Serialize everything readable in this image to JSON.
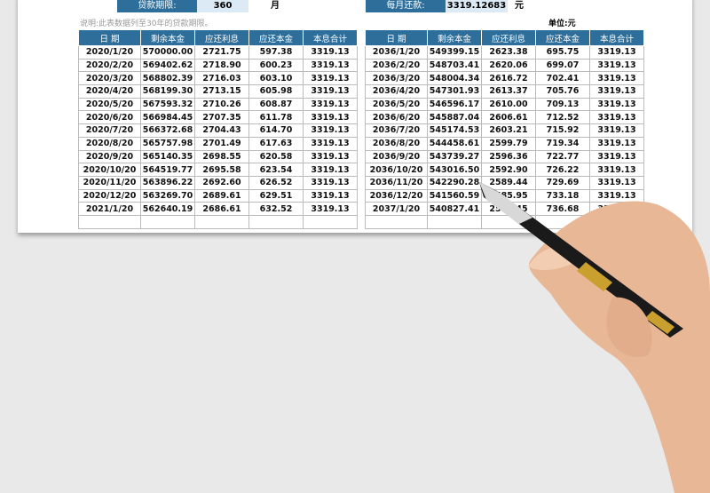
{
  "summary": {
    "term_label": "贷款期限:",
    "term_value": "360",
    "term_unit": "月",
    "payment_label": "每月还款:",
    "payment_value": "3319.12683",
    "payment_unit": "元"
  },
  "note": "说明:此表数据列至30年的贷款期限。",
  "unit": "单位:元",
  "headers": [
    "日 期",
    "剩余本金",
    "应还利息",
    "应还本金",
    "本息合计"
  ],
  "left_rows": [
    [
      "2020/1/20",
      "570000.00",
      "2721.75",
      "597.38",
      "3319.13"
    ],
    [
      "2020/2/20",
      "569402.62",
      "2718.90",
      "600.23",
      "3319.13"
    ],
    [
      "2020/3/20",
      "568802.39",
      "2716.03",
      "603.10",
      "3319.13"
    ],
    [
      "2020/4/20",
      "568199.30",
      "2713.15",
      "605.98",
      "3319.13"
    ],
    [
      "2020/5/20",
      "567593.32",
      "2710.26",
      "608.87",
      "3319.13"
    ],
    [
      "2020/6/20",
      "566984.45",
      "2707.35",
      "611.78",
      "3319.13"
    ],
    [
      "2020/7/20",
      "566372.68",
      "2704.43",
      "614.70",
      "3319.13"
    ],
    [
      "2020/8/20",
      "565757.98",
      "2701.49",
      "617.63",
      "3319.13"
    ],
    [
      "2020/9/20",
      "565140.35",
      "2698.55",
      "620.58",
      "3319.13"
    ],
    [
      "2020/10/20",
      "564519.77",
      "2695.58",
      "623.54",
      "3319.13"
    ],
    [
      "2020/11/20",
      "563896.22",
      "2692.60",
      "626.52",
      "3319.13"
    ],
    [
      "2020/12/20",
      "563269.70",
      "2689.61",
      "629.51",
      "3319.13"
    ],
    [
      "2021/1/20",
      "562640.19",
      "2686.61",
      "632.52",
      "3319.13"
    ],
    [
      "",
      "",
      "",
      "",
      ""
    ]
  ],
  "right_rows": [
    [
      "2036/1/20",
      "549399.15",
      "2623.38",
      "695.75",
      "3319.13"
    ],
    [
      "2036/2/20",
      "548703.41",
      "2620.06",
      "699.07",
      "3319.13"
    ],
    [
      "2036/3/20",
      "548004.34",
      "2616.72",
      "702.41",
      "3319.13"
    ],
    [
      "2036/4/20",
      "547301.93",
      "2613.37",
      "705.76",
      "3319.13"
    ],
    [
      "2036/5/20",
      "546596.17",
      "2610.00",
      "709.13",
      "3319.13"
    ],
    [
      "2036/6/20",
      "545887.04",
      "2606.61",
      "712.52",
      "3319.13"
    ],
    [
      "2036/7/20",
      "545174.53",
      "2603.21",
      "715.92",
      "3319.13"
    ],
    [
      "2036/8/20",
      "544458.61",
      "2599.79",
      "719.34",
      "3319.13"
    ],
    [
      "2036/9/20",
      "543739.27",
      "2596.36",
      "722.77",
      "3319.13"
    ],
    [
      "2036/10/20",
      "543016.50",
      "2592.90",
      "726.22",
      "3319.13"
    ],
    [
      "2036/11/20",
      "542290.28",
      "2589.44",
      "729.69",
      "3319.13"
    ],
    [
      "2036/12/20",
      "541560.59",
      "2585.95",
      "733.18",
      "3319.13"
    ],
    [
      "2037/1/20",
      "540827.41",
      "2582.45",
      "736.68",
      "3319.13"
    ],
    [
      "",
      "",
      "",
      "",
      ""
    ]
  ],
  "colors": {
    "header": "#2d6e9a",
    "background": "#e9e9e9"
  }
}
